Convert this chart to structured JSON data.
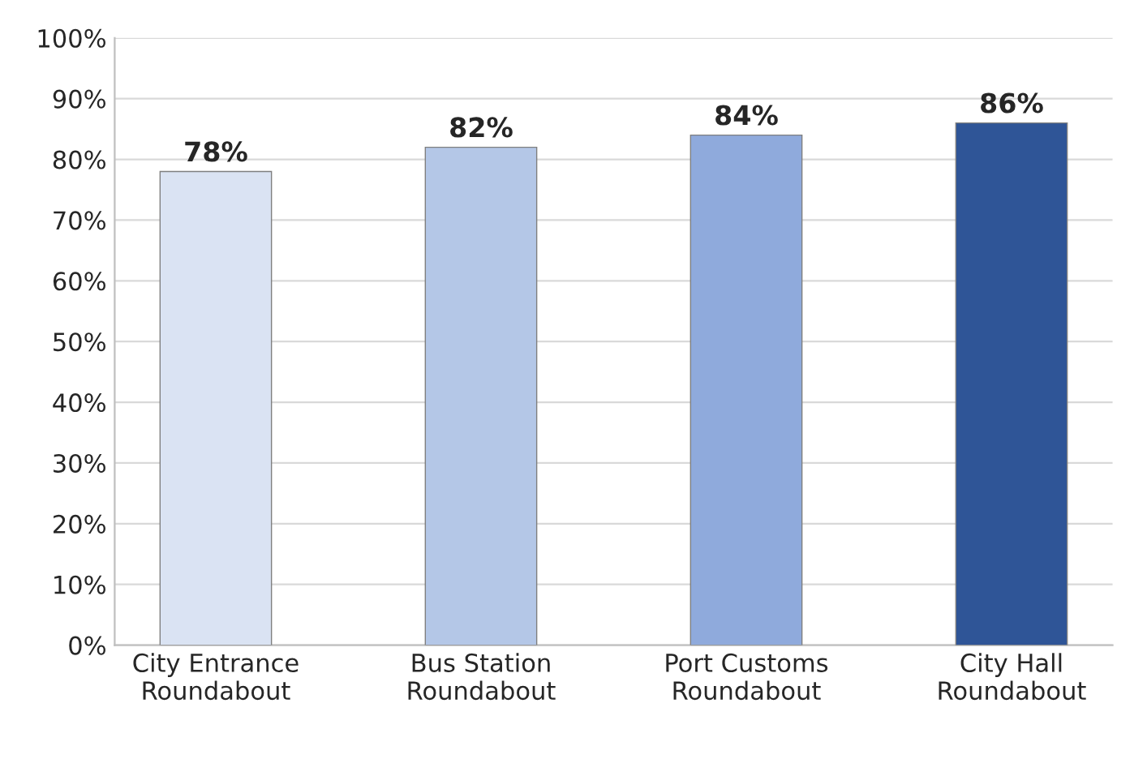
{
  "chart_data": {
    "type": "bar",
    "categories": [
      "City Entrance\nRoundabout",
      "Bus Station\nRoundabout",
      "Port Customs\nRoundabout",
      "City Hall\nRoundabout"
    ],
    "values": [
      78,
      82,
      84,
      86
    ],
    "colors": [
      "#dae3f3",
      "#b4c7e7",
      "#8faadc",
      "#2f5597"
    ],
    "value_labels": [
      "78%",
      "82%",
      "84%",
      "86%"
    ],
    "ylim": [
      0,
      100
    ],
    "yticks": [
      {
        "value": 0,
        "label": "0%"
      },
      {
        "value": 10,
        "label": "10%"
      },
      {
        "value": 20,
        "label": "20%"
      },
      {
        "value": 30,
        "label": "30%"
      },
      {
        "value": 40,
        "label": "40%"
      },
      {
        "value": 50,
        "label": "50%"
      },
      {
        "value": 60,
        "label": "60%"
      },
      {
        "value": 70,
        "label": "70%"
      },
      {
        "value": 80,
        "label": "80%"
      },
      {
        "value": 90,
        "label": "90%"
      },
      {
        "value": 100,
        "label": "100%"
      }
    ],
    "grid": "y"
  }
}
